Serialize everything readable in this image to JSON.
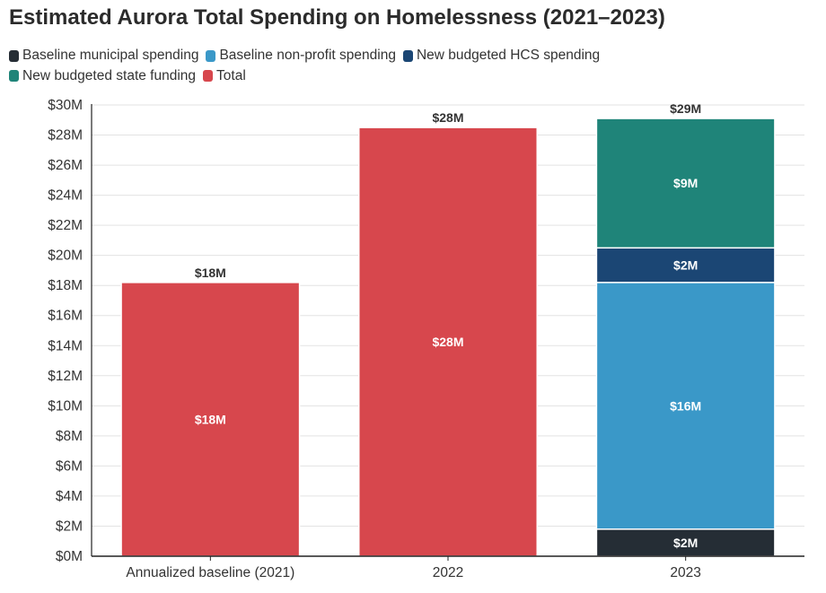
{
  "title": "Estimated Aurora Total Spending on Homelessness (2021–2023)",
  "legend": [
    {
      "label": "Baseline municipal spending",
      "color": "#252d35"
    },
    {
      "label": "Baseline non-profit spending",
      "color": "#3a98c8"
    },
    {
      "label": "New budgeted HCS spending",
      "color": "#1b4674"
    },
    {
      "label": "New budgeted state funding",
      "color": "#1f8479"
    },
    {
      "label": "Total",
      "color": "#d7474d"
    }
  ],
  "chart_data": {
    "type": "bar",
    "stacked": true,
    "categories": [
      "Annualized baseline (2021)",
      "2022",
      "2023"
    ],
    "series": [
      {
        "name": "Baseline municipal spending",
        "color": "#252d35",
        "values": [
          null,
          null,
          1.8
        ],
        "labels": [
          "",
          "",
          "$2M"
        ]
      },
      {
        "name": "Baseline non-profit spending",
        "color": "#3a98c8",
        "values": [
          null,
          null,
          16.4
        ],
        "labels": [
          "",
          "",
          "$16M"
        ]
      },
      {
        "name": "New budgeted HCS spending",
        "color": "#1b4674",
        "values": [
          null,
          null,
          2.3
        ],
        "labels": [
          "",
          "",
          "$2M"
        ]
      },
      {
        "name": "New budgeted state funding",
        "color": "#1f8479",
        "values": [
          null,
          null,
          8.6
        ],
        "labels": [
          "",
          "",
          "$9M"
        ]
      },
      {
        "name": "Total",
        "color": "#d7474d",
        "values": [
          18.2,
          28.5,
          null
        ],
        "labels": [
          "$18M",
          "$28M",
          ""
        ]
      }
    ],
    "totals": [
      {
        "value": 18.2,
        "label": "$18M"
      },
      {
        "value": 28.5,
        "label": "$28M"
      },
      {
        "value": 29.1,
        "label": "$29M"
      }
    ],
    "ylim": [
      0,
      30
    ],
    "yticks": [
      0,
      2,
      4,
      6,
      8,
      10,
      12,
      14,
      16,
      18,
      20,
      22,
      24,
      26,
      28,
      30
    ],
    "ytick_labels": [
      "$0M",
      "$2M",
      "$4M",
      "$6M",
      "$8M",
      "$10M",
      "$12M",
      "$14M",
      "$16M",
      "$18M",
      "$20M",
      "$22M",
      "$24M",
      "$26M",
      "$28M",
      "$30M"
    ],
    "grid": true,
    "legend_position": "top-left"
  }
}
